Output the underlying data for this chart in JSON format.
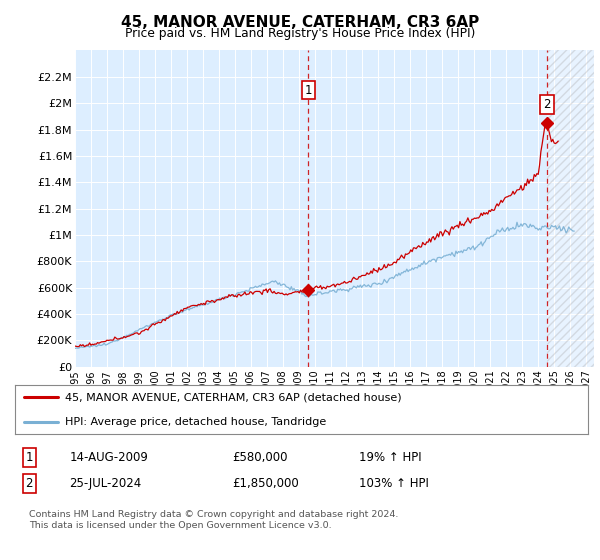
{
  "title": "45, MANOR AVENUE, CATERHAM, CR3 6AP",
  "subtitle": "Price paid vs. HM Land Registry's House Price Index (HPI)",
  "legend_line1": "45, MANOR AVENUE, CATERHAM, CR3 6AP (detached house)",
  "legend_line2": "HPI: Average price, detached house, Tandridge",
  "footnote": "Contains HM Land Registry data © Crown copyright and database right 2024.\nThis data is licensed under the Open Government Licence v3.0.",
  "annotation1_label": "1",
  "annotation1_date": "14-AUG-2009",
  "annotation1_price": "£580,000",
  "annotation1_hpi": "19% ↑ HPI",
  "annotation2_label": "2",
  "annotation2_date": "25-JUL-2024",
  "annotation2_price": "£1,850,000",
  "annotation2_hpi": "103% ↑ HPI",
  "line_color_red": "#cc0000",
  "line_color_blue": "#7ab0d4",
  "bg_color": "#ddeeff",
  "hatch_color": "#aaaaaa",
  "ylim": [
    0,
    2400000
  ],
  "yticks": [
    0,
    200000,
    400000,
    600000,
    800000,
    1000000,
    1200000,
    1400000,
    1600000,
    1800000,
    2000000,
    2200000
  ],
  "ytick_labels": [
    "£0",
    "£200K",
    "£400K",
    "£600K",
    "£800K",
    "£1M",
    "£1.2M",
    "£1.4M",
    "£1.6M",
    "£1.8M",
    "£2M",
    "£2.2M"
  ],
  "xlim_start": 1995.0,
  "xlim_end": 2027.5,
  "xticks": [
    1995,
    1996,
    1997,
    1998,
    1999,
    2000,
    2001,
    2002,
    2003,
    2004,
    2005,
    2006,
    2007,
    2008,
    2009,
    2010,
    2011,
    2012,
    2013,
    2014,
    2015,
    2016,
    2017,
    2018,
    2019,
    2020,
    2021,
    2022,
    2023,
    2024,
    2025,
    2026,
    2027
  ],
  "transaction1_x": 2009.617,
  "transaction1_y": 580000,
  "transaction2_x": 2024.558,
  "transaction2_y": 1850000,
  "future_start": 2024.558
}
